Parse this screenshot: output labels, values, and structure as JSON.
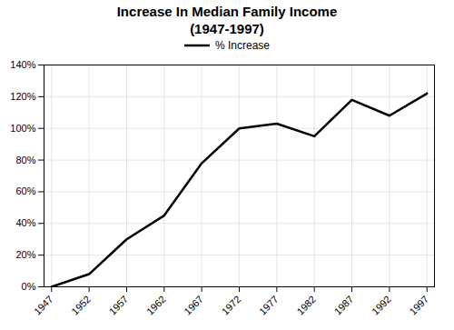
{
  "chart_data": {
    "type": "line",
    "title": "Increase In Median Family Income",
    "subtitle": "(1947-1997)",
    "x": [
      1947,
      1952,
      1957,
      1962,
      1967,
      1972,
      1977,
      1982,
      1987,
      1992,
      1997
    ],
    "series": [
      {
        "name": "% Increase",
        "color": "#000000",
        "values": [
          0,
          8,
          30,
          45,
          78,
          100,
          103,
          95,
          118,
          108,
          122
        ]
      }
    ],
    "xlim": [
      1946,
      1998
    ],
    "xticks": [
      1947,
      1952,
      1957,
      1962,
      1967,
      1972,
      1977,
      1982,
      1987,
      1992,
      1997
    ],
    "ylim": [
      0,
      140
    ],
    "yticks": [
      {
        "value": 0,
        "label": "0%"
      },
      {
        "value": 20,
        "label": "20%"
      },
      {
        "value": 40,
        "label": "40%"
      },
      {
        "value": 60,
        "label": "60%"
      },
      {
        "value": 80,
        "label": "80%"
      },
      {
        "value": 100,
        "label": "100%"
      },
      {
        "value": 120,
        "label": "120%"
      },
      {
        "value": 140,
        "label": "140%"
      }
    ],
    "grid": true,
    "legend": "top"
  }
}
